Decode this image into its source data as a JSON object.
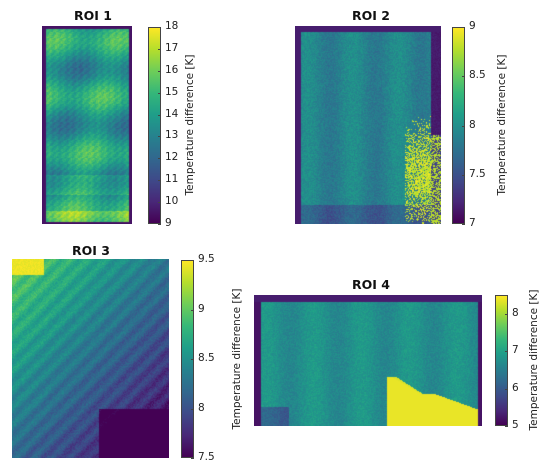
{
  "chart_data": [
    {
      "type": "heatmap",
      "title": "ROI 1",
      "colorbar": {
        "label": "Temperature difference [K]",
        "min": 9,
        "max": 18,
        "ticks": [
          "9",
          "10",
          "11",
          "12",
          "13",
          "14",
          "15",
          "16",
          "17",
          "18"
        ]
      },
      "colormap": "viridis"
    },
    {
      "type": "heatmap",
      "title": "ROI 2",
      "colorbar": {
        "label": "Temperature difference [K]",
        "min": 7,
        "max": 9,
        "ticks": [
          "7",
          "7.5",
          "8",
          "8.5",
          "9"
        ]
      },
      "colormap": "viridis"
    },
    {
      "type": "heatmap",
      "title": "ROI 3",
      "colorbar": {
        "label": "Temperature difference [K]",
        "min": 7.5,
        "max": 9.5,
        "ticks": [
          "7.5",
          "8",
          "8.5",
          "9",
          "9.5"
        ]
      },
      "colormap": "viridis"
    },
    {
      "type": "heatmap",
      "title": "ROI 4",
      "colorbar": {
        "label": "Temperature difference [K]",
        "min": 5,
        "max": 8.5,
        "ticks": [
          "5",
          "6",
          "7",
          "8"
        ]
      },
      "colormap": "viridis"
    }
  ]
}
